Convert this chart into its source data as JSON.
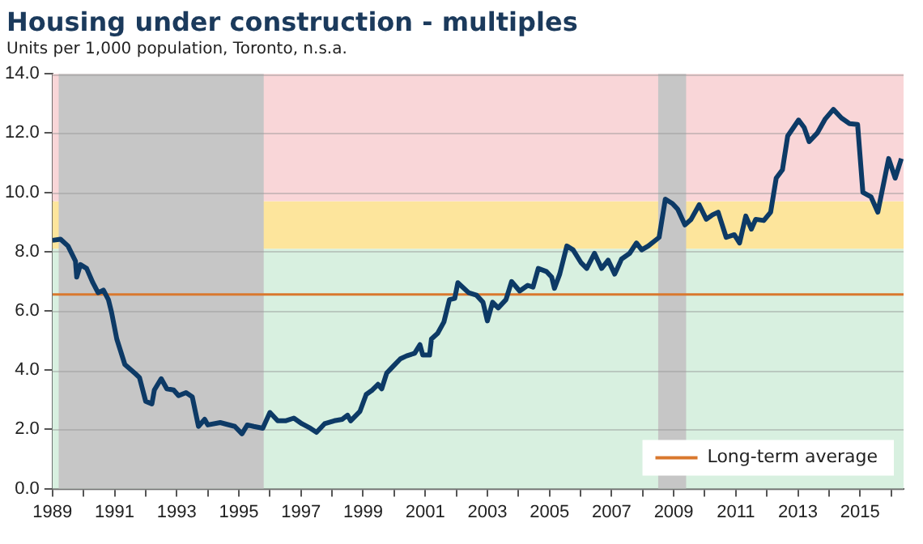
{
  "chart_data": {
    "type": "line",
    "title": "Housing under construction - multiples",
    "subtitle": "Units per 1,000 population, Toronto, n.s.a.",
    "xlim": [
      1989,
      2016.4
    ],
    "xticks": [
      1989,
      {
        "value": 1990,
        "label": null
      },
      1991,
      {
        "value": 1992,
        "label": null
      },
      1993,
      {
        "value": 1994,
        "label": null
      },
      1995,
      {
        "value": 1996,
        "label": null
      },
      1997,
      {
        "value": 1998,
        "label": null
      },
      1999,
      {
        "value": 2000,
        "label": null
      },
      2001,
      {
        "value": 2002,
        "label": null
      },
      2003,
      {
        "value": 2004,
        "label": null
      },
      2005,
      {
        "value": 2006,
        "label": null
      },
      2007,
      {
        "value": 2008,
        "label": null
      },
      2009,
      {
        "value": 2010,
        "label": null
      },
      2011,
      {
        "value": 2012,
        "label": null
      },
      2013,
      {
        "value": 2014,
        "label": null
      },
      2015,
      {
        "value": 2016,
        "label": null
      }
    ],
    "ylim": [
      0,
      14
    ],
    "yticks": [
      {
        "value": 0,
        "label": "0.0"
      },
      {
        "value": 2,
        "label": "2.0"
      },
      {
        "value": 4,
        "label": "4.0"
      },
      {
        "value": 6,
        "label": "6.0"
      },
      {
        "value": 8,
        "label": "8.0"
      },
      {
        "value": 10,
        "label": "10.0"
      },
      {
        "value": 12,
        "label": "12.0"
      },
      {
        "value": 14,
        "label": "14.0"
      }
    ],
    "grid": "y",
    "legend": "bottom right",
    "marker": "none",
    "line_style": "solid",
    "series": [
      {
        "color": "#0d3a66",
        "x": [
          1989.0,
          1989.26,
          1989.5,
          1989.74,
          1989.78,
          1989.9,
          1990.1,
          1990.3,
          1990.47,
          1990.64,
          1990.8,
          1990.9,
          1991.07,
          1991.33,
          1991.68,
          1991.8,
          1992.0,
          1992.2,
          1992.28,
          1992.5,
          1992.68,
          1992.9,
          1993.06,
          1993.3,
          1993.5,
          1993.7,
          1993.9,
          1994.0,
          1994.4,
          1994.87,
          1995.1,
          1995.27,
          1995.48,
          1995.77,
          1996.0,
          1996.25,
          1996.5,
          1996.77,
          1997.03,
          1997.3,
          1997.5,
          1997.76,
          1998.07,
          1998.33,
          1998.5,
          1998.6,
          1998.9,
          1999.1,
          1999.3,
          1999.48,
          1999.6,
          1999.76,
          1999.97,
          2000.2,
          2000.4,
          2000.66,
          2000.83,
          2000.92,
          2001.14,
          2001.2,
          2001.4,
          2001.6,
          2001.78,
          2001.95,
          2002.05,
          2002.4,
          2002.65,
          2002.86,
          2003.0,
          2003.17,
          2003.35,
          2003.6,
          2003.78,
          2004.04,
          2004.3,
          2004.47,
          2004.64,
          2004.9,
          2005.07,
          2005.16,
          2005.33,
          2005.56,
          2005.76,
          2006.02,
          2006.2,
          2006.45,
          2006.68,
          2006.89,
          2007.1,
          2007.32,
          2007.58,
          2007.8,
          2007.97,
          2008.18,
          2008.53,
          2008.73,
          2008.96,
          2009.13,
          2009.36,
          2009.56,
          2009.82,
          2010.05,
          2010.25,
          2010.43,
          2010.69,
          2010.95,
          2011.12,
          2011.32,
          2011.5,
          2011.64,
          2011.9,
          2012.12,
          2012.3,
          2012.5,
          2012.67,
          2013.02,
          2013.2,
          2013.36,
          2013.62,
          2013.88,
          2014.14,
          2014.4,
          2014.66,
          2014.92,
          2015.09,
          2015.35,
          2015.57,
          2015.7,
          2015.92,
          2016.13,
          2016.33
        ],
        "values": [
          8.38,
          8.42,
          8.19,
          7.68,
          7.14,
          7.56,
          7.43,
          6.95,
          6.61,
          6.7,
          6.38,
          5.96,
          5.05,
          4.19,
          3.87,
          3.75,
          2.95,
          2.86,
          3.33,
          3.71,
          3.37,
          3.33,
          3.14,
          3.24,
          3.1,
          2.1,
          2.34,
          2.15,
          2.23,
          2.1,
          1.85,
          2.15,
          2.1,
          2.04,
          2.57,
          2.29,
          2.29,
          2.38,
          2.19,
          2.04,
          1.9,
          2.19,
          2.29,
          2.34,
          2.48,
          2.29,
          2.61,
          3.18,
          3.33,
          3.52,
          3.37,
          3.9,
          4.13,
          4.38,
          4.48,
          4.57,
          4.86,
          4.51,
          4.51,
          5.05,
          5.24,
          5.62,
          6.38,
          6.42,
          6.95,
          6.61,
          6.53,
          6.29,
          5.66,
          6.29,
          6.1,
          6.38,
          6.99,
          6.67,
          6.86,
          6.8,
          7.43,
          7.33,
          7.14,
          6.76,
          7.24,
          8.19,
          8.06,
          7.62,
          7.43,
          7.94,
          7.43,
          7.71,
          7.24,
          7.75,
          7.94,
          8.29,
          8.06,
          8.19,
          8.48,
          9.77,
          9.62,
          9.43,
          8.9,
          9.09,
          9.58,
          9.09,
          9.24,
          9.33,
          8.48,
          8.57,
          8.29,
          9.2,
          8.76,
          9.09,
          9.05,
          9.33,
          10.48,
          10.76,
          11.9,
          12.44,
          12.19,
          11.71,
          12.0,
          12.48,
          12.8,
          12.51,
          12.32,
          12.29,
          10.0,
          9.85,
          9.33,
          10.0,
          11.14,
          10.48,
          11.14
        ]
      }
    ],
    "ref_lines": [
      {
        "axis": "y",
        "value": 6.55,
        "label": "Long-term average",
        "color": "#d9782e",
        "line_style": "solid"
      }
    ],
    "bands": [
      {
        "axis": "y",
        "from": 0,
        "to": 8.1,
        "color": "#d8f0e0"
      },
      {
        "axis": "y",
        "from": 8.1,
        "to": 9.7,
        "color": "#fde59c"
      },
      {
        "axis": "y",
        "from": 9.7,
        "to": 14,
        "color": "#f9d6d8"
      },
      {
        "axis": "x",
        "from": 1989.2,
        "to": 1995.8,
        "color": "#c6c6c6"
      },
      {
        "axis": "x",
        "from": 2008.5,
        "to": 2009.4,
        "color": "#c6c6c6"
      }
    ]
  }
}
